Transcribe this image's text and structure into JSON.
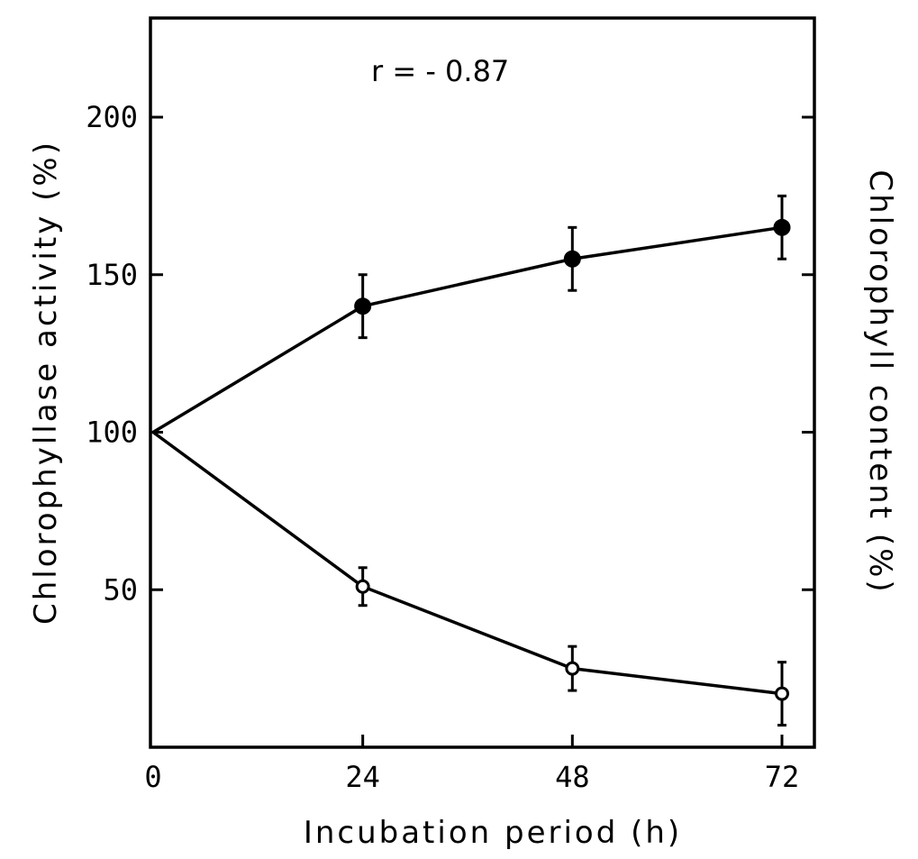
{
  "chart_data": {
    "type": "line",
    "annotation": "r = - 0.87",
    "xlabel": "Incubation period (h)",
    "ylabel_left": "Chlorophyllase activity (%)",
    "ylabel_right": "Chlorophyll content (%)",
    "x_ticks": [
      "0",
      "24",
      "48",
      "72"
    ],
    "y_ticks": [
      "50",
      "100",
      "150",
      "200"
    ],
    "xlim": [
      0,
      76
    ],
    "ylim": [
      0,
      230
    ],
    "grid": false,
    "series": [
      {
        "marker": "filled-circle",
        "x": [
          0,
          24,
          48,
          72
        ],
        "y": [
          100,
          140,
          155,
          165
        ],
        "err": [
          0,
          10,
          10,
          10
        ]
      },
      {
        "marker": "open-circle",
        "x": [
          0,
          24,
          48,
          72
        ],
        "y": [
          100,
          51,
          25,
          17
        ],
        "err": [
          0,
          6,
          7,
          10
        ]
      }
    ]
  }
}
